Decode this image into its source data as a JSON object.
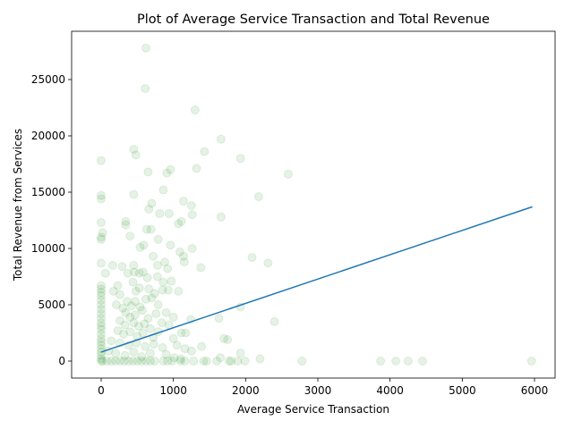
{
  "chart_data": {
    "type": "scatter",
    "title": "Plot of Average Service Transaction and Total Revenue",
    "x_label": "Average Service Transaction",
    "y_label": "Total Revenue from Services",
    "xlim": [
      -409,
      6285
    ],
    "ylim": [
      -1508,
      29286
    ],
    "xticks": [
      0,
      1000,
      2000,
      3000,
      4000,
      5000,
      6000
    ],
    "yticks": [
      0,
      5000,
      10000,
      15000,
      20000,
      25000
    ],
    "scatter": {
      "color": "green",
      "x": [
        620,
        610,
        1300,
        450,
        480,
        1660,
        1430,
        1930,
        0,
        650,
        960,
        1320,
        910,
        2590,
        0,
        0,
        450,
        860,
        1140,
        2180,
        700,
        1250,
        660,
        810,
        940,
        1260,
        1660,
        340,
        340,
        1110,
        1070,
        0,
        630,
        690,
        400,
        20,
        0,
        0,
        790,
        590,
        540,
        960,
        1260,
        1090,
        2090,
        1140,
        720,
        1150,
        2310,
        0,
        450,
        160,
        290,
        880,
        780,
        920,
        1380,
        60,
        370,
        460,
        530,
        580,
        640,
        780,
        440,
        860,
        970,
        0,
        0,
        0,
        230,
        170,
        260,
        480,
        530,
        660,
        740,
        850,
        1070,
        930,
        0,
        0,
        0,
        0,
        0,
        0,
        0,
        0,
        0,
        0,
        0,
        0,
        0,
        0,
        0,
        0,
        0,
        0,
        210,
        300,
        360,
        420,
        470,
        540,
        620,
        700,
        790,
        340,
        400,
        470,
        570,
        650,
        760,
        900,
        1000,
        260,
        330,
        450,
        520,
        600,
        680,
        840,
        940,
        1240,
        1630,
        1930,
        2400,
        230,
        310,
        400,
        500,
        580,
        720,
        790,
        1110,
        1170,
        1000,
        1700,
        1750,
        140,
        260,
        380,
        490,
        610,
        730,
        850,
        1050,
        1160,
        1390,
        1250,
        1930,
        1650,
        2200,
        100,
        200,
        330,
        450,
        560,
        680,
        900,
        1010,
        1100,
        20,
        80,
        140,
        200,
        260,
        320,
        380,
        440,
        500,
        560,
        620,
        680,
        740,
        860,
        920,
        980,
        1100,
        1160,
        1280,
        1420,
        1460,
        1600,
        1770,
        1800,
        1890,
        1990,
        2780,
        3870,
        4080,
        4250,
        4450,
        5960
      ],
      "y": [
        27800,
        24200,
        22300,
        18800,
        18300,
        19700,
        18600,
        18000,
        17800,
        16800,
        17000,
        17100,
        16700,
        16600,
        14700,
        14400,
        14800,
        15200,
        14200,
        14600,
        14000,
        13800,
        13500,
        13100,
        13100,
        13000,
        12800,
        12400,
        12100,
        12400,
        12200,
        12300,
        11700,
        11700,
        11100,
        11400,
        11000,
        10800,
        10800,
        10300,
        10100,
        10300,
        10000,
        9700,
        9200,
        9300,
        9300,
        8800,
        8700,
        8700,
        8500,
        8500,
        8400,
        8800,
        8500,
        8200,
        8300,
        7800,
        7800,
        7900,
        7800,
        7900,
        7400,
        7500,
        7000,
        7000,
        7100,
        6700,
        6400,
        6100,
        6700,
        6200,
        5900,
        6200,
        6500,
        6400,
        6000,
        6300,
        6200,
        6300,
        5800,
        5400,
        5000,
        4600,
        4200,
        3800,
        3400,
        3100,
        2800,
        2400,
        2000,
        1700,
        1400,
        1100,
        800,
        500,
        200,
        0,
        5000,
        4700,
        5300,
        4900,
        5300,
        4800,
        5500,
        5600,
        5000,
        4300,
        3900,
        4100,
        4500,
        3800,
        4200,
        4300,
        3900,
        3600,
        3200,
        3400,
        3100,
        3300,
        2900,
        3400,
        3200,
        3700,
        3800,
        4800,
        3500,
        2700,
        2400,
        2600,
        2200,
        2500,
        2100,
        2600,
        2500,
        2500,
        2000,
        2000,
        1900,
        1800,
        1600,
        1400,
        1600,
        1300,
        1500,
        1200,
        1400,
        1100,
        1300,
        900,
        700,
        300,
        200,
        900,
        700,
        500,
        800,
        400,
        700,
        600,
        300,
        200,
        0,
        0,
        0,
        0,
        0,
        0,
        0,
        0,
        0,
        0,
        0,
        0,
        0,
        0,
        0,
        0,
        0,
        0,
        0,
        0,
        0,
        0,
        0,
        0,
        0,
        0,
        0,
        0,
        0,
        0,
        0,
        0
      ]
    },
    "fit_line": {
      "color": "#1f77b4",
      "x": [
        0,
        5970
      ],
      "y": [
        800,
        13700
      ]
    }
  }
}
